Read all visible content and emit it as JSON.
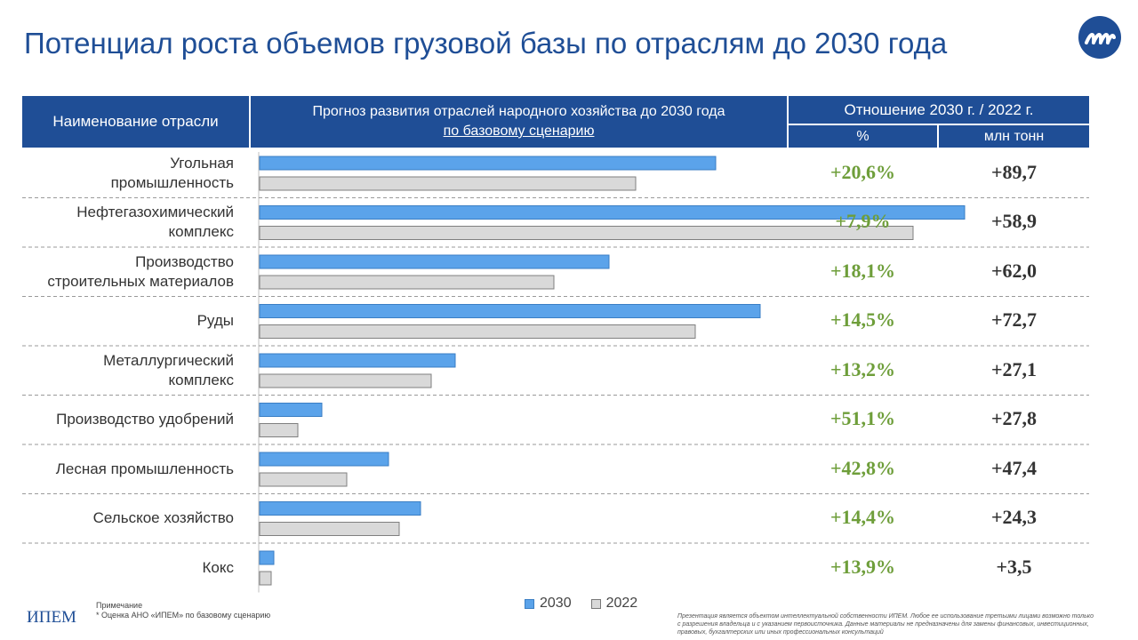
{
  "title": "Потенциал роста объемов грузовой базы по отраслям до 2030 года",
  "logo_icon": "ipem-wave-logo-icon",
  "header": {
    "name_col": "Наименование отрасли",
    "forecast_line1": "Прогноз развития отраслей народного хозяйства до 2030 года",
    "forecast_line2": "по базовому сценарию",
    "ratio": "Отношение 2030 г. / 2022 г.",
    "pct": "%",
    "mln": "млн тонн"
  },
  "colors": {
    "bar_2030": "#5ba3ea",
    "bar_2022": "#d9d9d9",
    "header_bg": "#1f4e96",
    "pct_text": "#6e9e3a"
  },
  "chart_data": {
    "type": "bar",
    "orientation": "horizontal",
    "categories": [
      [
        "Угольная",
        "промышленность"
      ],
      [
        "Нефтегазохимический",
        "комплекс"
      ],
      [
        "Производство",
        "строительных материалов"
      ],
      [
        "Руды"
      ],
      [
        "Металлургический",
        "комплекс"
      ],
      [
        "Производство удобрений"
      ],
      [
        "Лесная промышленность"
      ],
      [
        "Сельское хозяйство"
      ],
      [
        "Кокс"
      ]
    ],
    "series": [
      {
        "name": "2030",
        "values": [
          525,
          805,
          405,
          575,
          232,
          82,
          157,
          193,
          28
        ]
      },
      {
        "name": "2022",
        "values": [
          435,
          747,
          343,
          502,
          205,
          55,
          110,
          169,
          25
        ]
      }
    ],
    "pct_change": [
      "+20,6%",
      "+7,9%",
      "+18,1%",
      "+14,5%",
      "+13,2%",
      "+51,1%",
      "+42,8%",
      "+14,4%",
      "+13,9%"
    ],
    "mln_change": [
      "+89,7",
      "+58,9",
      "+62,0",
      "+72,7",
      "+27,1",
      "+27,8",
      "+47,4",
      "+24,3",
      "+3,5"
    ],
    "legend": [
      "2030",
      "2022"
    ],
    "legend_position": "bottom",
    "xlim": [
      0,
      950
    ]
  },
  "footer": {
    "brand": "ИПЕМ",
    "note_title": "Примечание",
    "note_text": "* Оценка АНО «ИПЕМ» по базовому сценарию",
    "disclaimer": "Презентация является объектом интеллектуальной собственности ИПЕМ. Любое ее использование третьими лицами возможно только с разрешения владельца и с указанием первоисточника. Данные материалы не предназначены для замены финансовых, инвестиционных, правовых, бухгалтерских или иных профессиональных консультаций"
  }
}
